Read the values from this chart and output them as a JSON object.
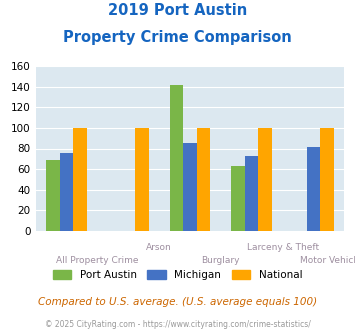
{
  "title_line1": "2019 Port Austin",
  "title_line2": "Property Crime Comparison",
  "categories": [
    "All Property Crime",
    "Arson",
    "Burglary",
    "Larceny & Theft",
    "Motor Vehicle Theft"
  ],
  "series": {
    "Port Austin": [
      69,
      0,
      142,
      63,
      0
    ],
    "Michigan": [
      76,
      0,
      85,
      73,
      81
    ],
    "National": [
      100,
      100,
      100,
      100,
      100
    ]
  },
  "colors": {
    "Port Austin": "#7ab648",
    "Michigan": "#4472c4",
    "National": "#ffa500"
  },
  "ylim": [
    0,
    160
  ],
  "yticks": [
    0,
    20,
    40,
    60,
    80,
    100,
    120,
    140,
    160
  ],
  "plot_bg_color": "#dce8f0",
  "title_color": "#1565c0",
  "xlabel_color": "#9e8fa0",
  "footnote1": "Compared to U.S. average. (U.S. average equals 100)",
  "footnote2": "© 2025 CityRating.com - https://www.cityrating.com/crime-statistics/",
  "footnote1_color": "#cc6600",
  "footnote2_color": "#999999",
  "bar_width": 0.22,
  "title_fontsize": 10.5,
  "tick_fontsize": 7.5,
  "legend_fontsize": 7.5,
  "footnote1_fontsize": 7.5,
  "footnote2_fontsize": 5.5
}
